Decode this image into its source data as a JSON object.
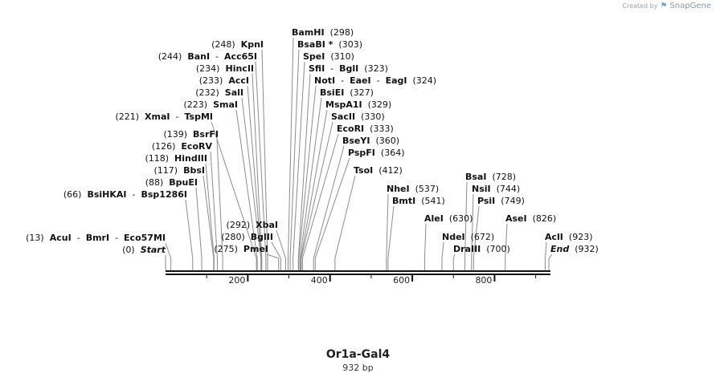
{
  "branding": {
    "created_by": "Created by",
    "app_name": "SnapGene",
    "logo_icon": "snapgene-logo-icon"
  },
  "sequence": {
    "name": "Or1a-Gal4",
    "length_label": "932 bp",
    "length_bp": 932
  },
  "axis": {
    "ticks": [
      200,
      400,
      600,
      800
    ],
    "minor_tick_interval": 100
  },
  "enzyme_labels": [
    {
      "parts": [
        {
          "t": "(13)",
          "b": false
        },
        {
          "t": "AcuI",
          "b": true
        },
        {
          "t": "-",
          "b": false
        },
        {
          "t": "BmrI",
          "b": true
        },
        {
          "t": "-",
          "b": false
        },
        {
          "t": "Eco57MI",
          "b": true
        }
      ],
      "sites": [
        13
      ],
      "side": "left"
    },
    {
      "parts": [
        {
          "t": "(0)",
          "b": false
        },
        {
          "t": "Start",
          "b": true,
          "i": true
        }
      ],
      "sites": [
        0
      ],
      "side": "left"
    },
    {
      "parts": [
        {
          "t": "(66)",
          "b": false
        },
        {
          "t": "BsiHKAI",
          "b": true
        },
        {
          "t": "-",
          "b": false
        },
        {
          "t": "Bsp1286I",
          "b": true
        }
      ],
      "sites": [
        66
      ],
      "side": "left"
    },
    {
      "parts": [
        {
          "t": "(88)",
          "b": false
        },
        {
          "t": "BpuEI",
          "b": true
        }
      ],
      "sites": [
        88
      ],
      "side": "left"
    },
    {
      "parts": [
        {
          "t": "(117)",
          "b": false
        },
        {
          "t": "BbsI",
          "b": true
        }
      ],
      "sites": [
        117
      ],
      "side": "left"
    },
    {
      "parts": [
        {
          "t": "(118)",
          "b": false
        },
        {
          "t": "HindIII",
          "b": true
        }
      ],
      "sites": [
        118
      ],
      "side": "left"
    },
    {
      "parts": [
        {
          "t": "(126)",
          "b": false
        },
        {
          "t": "EcoRV",
          "b": true
        }
      ],
      "sites": [
        126
      ],
      "side": "left"
    },
    {
      "parts": [
        {
          "t": "(139)",
          "b": false
        },
        {
          "t": "BsrFI",
          "b": true
        }
      ],
      "sites": [
        139
      ],
      "side": "left"
    },
    {
      "parts": [
        {
          "t": "(221)",
          "b": false
        },
        {
          "t": "XmaI",
          "b": true
        },
        {
          "t": "-",
          "b": false
        },
        {
          "t": "TspMI",
          "b": true
        }
      ],
      "sites": [
        221
      ],
      "side": "left"
    },
    {
      "parts": [
        {
          "t": "(223)",
          "b": false
        },
        {
          "t": "SmaI",
          "b": true
        }
      ],
      "sites": [
        223
      ],
      "side": "left"
    },
    {
      "parts": [
        {
          "t": "(232)",
          "b": false
        },
        {
          "t": "SalI",
          "b": true
        }
      ],
      "sites": [
        232
      ],
      "side": "left"
    },
    {
      "parts": [
        {
          "t": "(233)",
          "b": false
        },
        {
          "t": "AccI",
          "b": true
        }
      ],
      "sites": [
        233
      ],
      "side": "left"
    },
    {
      "parts": [
        {
          "t": "(234)",
          "b": false
        },
        {
          "t": "HincII",
          "b": true
        }
      ],
      "sites": [
        234
      ],
      "side": "left"
    },
    {
      "parts": [
        {
          "t": "(244)",
          "b": false
        },
        {
          "t": "BanI",
          "b": true
        },
        {
          "t": "-",
          "b": false
        },
        {
          "t": "Acc65I",
          "b": true
        }
      ],
      "sites": [
        244
      ],
      "side": "left"
    },
    {
      "parts": [
        {
          "t": "(248)",
          "b": false
        },
        {
          "t": "KpnI",
          "b": true
        }
      ],
      "sites": [
        248
      ],
      "side": "left"
    },
    {
      "parts": [
        {
          "t": "(275)",
          "b": false
        },
        {
          "t": "PmeI",
          "b": true
        }
      ],
      "sites": [
        275
      ],
      "side": "left"
    },
    {
      "parts": [
        {
          "t": "(280)",
          "b": false
        },
        {
          "t": "BglII",
          "b": true
        }
      ],
      "sites": [
        280
      ],
      "side": "left"
    },
    {
      "parts": [
        {
          "t": "(292)",
          "b": false
        },
        {
          "t": "XbaI",
          "b": true
        }
      ],
      "sites": [
        292
      ],
      "side": "left"
    },
    {
      "parts": [
        {
          "t": "BamHI",
          "b": true
        },
        {
          "t": "(298)",
          "b": false
        }
      ],
      "sites": [
        298
      ],
      "side": "right"
    },
    {
      "parts": [
        {
          "t": "BsaBI *",
          "b": true
        },
        {
          "t": "(303)",
          "b": false
        }
      ],
      "sites": [
        303
      ],
      "side": "right"
    },
    {
      "parts": [
        {
          "t": "SpeI",
          "b": true
        },
        {
          "t": "(310)",
          "b": false
        }
      ],
      "sites": [
        310
      ],
      "side": "right"
    },
    {
      "parts": [
        {
          "t": "SfiI",
          "b": true
        },
        {
          "t": "-",
          "b": false
        },
        {
          "t": "BglI",
          "b": true
        },
        {
          "t": "(323)",
          "b": false
        }
      ],
      "sites": [
        323
      ],
      "side": "right"
    },
    {
      "parts": [
        {
          "t": "NotI",
          "b": true
        },
        {
          "t": "-",
          "b": false
        },
        {
          "t": "EaeI",
          "b": true
        },
        {
          "t": "-",
          "b": false
        },
        {
          "t": "EagI",
          "b": true
        },
        {
          "t": "(324)",
          "b": false
        }
      ],
      "sites": [
        324
      ],
      "side": "right"
    },
    {
      "parts": [
        {
          "t": "BsiEI",
          "b": true
        },
        {
          "t": "(327)",
          "b": false
        }
      ],
      "sites": [
        327
      ],
      "side": "right"
    },
    {
      "parts": [
        {
          "t": "MspA1I",
          "b": true
        },
        {
          "t": "(329)",
          "b": false
        }
      ],
      "sites": [
        329
      ],
      "side": "right"
    },
    {
      "parts": [
        {
          "t": "SacII",
          "b": true
        },
        {
          "t": "(330)",
          "b": false
        }
      ],
      "sites": [
        330
      ],
      "side": "right"
    },
    {
      "parts": [
        {
          "t": "EcoRI",
          "b": true
        },
        {
          "t": "(333)",
          "b": false
        }
      ],
      "sites": [
        333
      ],
      "side": "right"
    },
    {
      "parts": [
        {
          "t": "BseYI",
          "b": true
        },
        {
          "t": "(360)",
          "b": false
        }
      ],
      "sites": [
        360
      ],
      "side": "right"
    },
    {
      "parts": [
        {
          "t": "PspFI",
          "b": true
        },
        {
          "t": "(364)",
          "b": false
        }
      ],
      "sites": [
        364
      ],
      "side": "right"
    },
    {
      "parts": [
        {
          "t": "TsoI",
          "b": true
        },
        {
          "t": "(412)",
          "b": false
        }
      ],
      "sites": [
        412
      ],
      "side": "right"
    },
    {
      "parts": [
        {
          "t": "NheI",
          "b": true
        },
        {
          "t": "(537)",
          "b": false
        }
      ],
      "sites": [
        537
      ],
      "side": "right"
    },
    {
      "parts": [
        {
          "t": "BmtI",
          "b": true
        },
        {
          "t": "(541)",
          "b": false
        }
      ],
      "sites": [
        541
      ],
      "side": "right"
    },
    {
      "parts": [
        {
          "t": "AleI",
          "b": true
        },
        {
          "t": "(630)",
          "b": false
        }
      ],
      "sites": [
        630
      ],
      "side": "right"
    },
    {
      "parts": [
        {
          "t": "NdeI",
          "b": true
        },
        {
          "t": "(672)",
          "b": false
        }
      ],
      "sites": [
        672
      ],
      "side": "right"
    },
    {
      "parts": [
        {
          "t": "DraIII",
          "b": true
        },
        {
          "t": "(700)",
          "b": false
        }
      ],
      "sites": [
        700
      ],
      "side": "right"
    },
    {
      "parts": [
        {
          "t": "BsaI",
          "b": true
        },
        {
          "t": "(728)",
          "b": false
        }
      ],
      "sites": [
        728
      ],
      "side": "right"
    },
    {
      "parts": [
        {
          "t": "NsiI",
          "b": true
        },
        {
          "t": "(744)",
          "b": false
        }
      ],
      "sites": [
        744
      ],
      "side": "right"
    },
    {
      "parts": [
        {
          "t": "PsiI",
          "b": true
        },
        {
          "t": "(749)",
          "b": false
        }
      ],
      "sites": [
        749
      ],
      "side": "right"
    },
    {
      "parts": [
        {
          "t": "AseI",
          "b": true
        },
        {
          "t": "(826)",
          "b": false
        }
      ],
      "sites": [
        826
      ],
      "side": "right"
    },
    {
      "parts": [
        {
          "t": "AclI",
          "b": true
        },
        {
          "t": "(923)",
          "b": false
        }
      ],
      "sites": [
        923
      ],
      "side": "right"
    },
    {
      "parts": [
        {
          "t": "End",
          "b": true,
          "i": true
        },
        {
          "t": "(932)",
          "b": false
        }
      ],
      "sites": [
        932
      ],
      "side": "right"
    }
  ]
}
